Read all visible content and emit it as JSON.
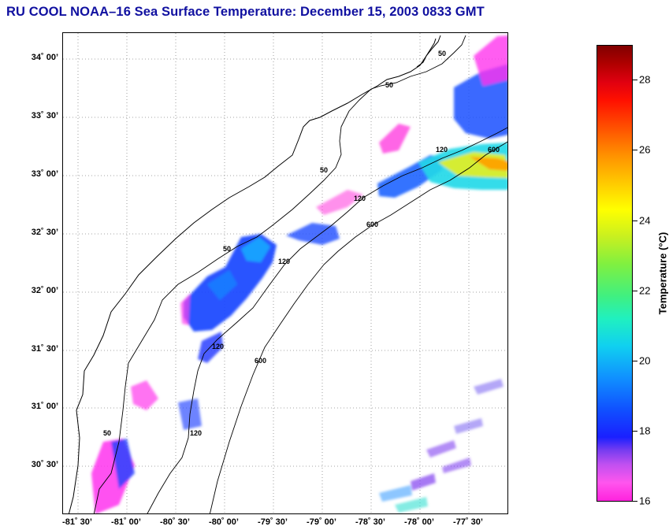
{
  "title": "RU COOL  NOAA–16  Sea Surface Temperature:  December 15, 2003 0833 GMT",
  "map": {
    "lat_labels": [
      "34˚ 00’",
      "33˚ 30’",
      "33˚ 00’",
      "32˚ 30’",
      "32˚ 00’",
      "31˚ 30’",
      "31˚ 00’",
      "30˚ 30’"
    ],
    "lon_labels": [
      "-81˚ 30’",
      "-81˚ 00’",
      "-80˚ 30’",
      "-80˚ 00’",
      "-79˚ 30’",
      "-79˚ 00’",
      "-78˚ 30’",
      "-78˚ 00’",
      "-77˚ 30’"
    ],
    "contour_labels": [
      "50",
      "50",
      "50",
      "50",
      "50",
      "120",
      "120",
      "120",
      "120",
      "120",
      "600",
      "600",
      "600"
    ]
  },
  "colorbar": {
    "title": "Temperature (°C)",
    "tick_labels": [
      "28",
      "26",
      "24",
      "22",
      "20",
      "18",
      "16"
    ],
    "range": [
      16,
      29
    ]
  },
  "colors": {
    "title": "#1010a0",
    "coast": "#000000",
    "grid": "#888888"
  }
}
